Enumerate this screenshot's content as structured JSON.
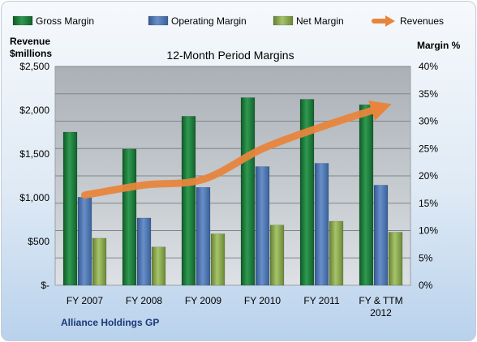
{
  "chart_data": {
    "type": "bar",
    "title": "12-Month Period Margins",
    "ylabel_left": [
      "Revenue",
      "$millions"
    ],
    "ylabel_right": "Margin %",
    "footer": "Alliance Holdings GP",
    "categories": [
      "FY 2007",
      "FY 2008",
      "FY 2009",
      "FY 2010",
      "FY 2011",
      "FY & TTM 2012"
    ],
    "category_labels": [
      [
        "FY 2007"
      ],
      [
        "FY 2008"
      ],
      [
        "FY 2009"
      ],
      [
        "FY 2010"
      ],
      [
        "FY 2011"
      ],
      [
        "FY & TTM",
        "2012"
      ]
    ],
    "left_axis": {
      "min": 0,
      "max": 2500,
      "ticks": [
        "$-",
        "$500",
        "$1,000",
        "$1,500",
        "$2,000",
        "$2,500"
      ]
    },
    "right_axis": {
      "min": 0,
      "max": 40,
      "ticks": [
        "0%",
        "5%",
        "10%",
        "15%",
        "20%",
        "25%",
        "30%",
        "35%",
        "40%"
      ]
    },
    "grid": true,
    "legend_position": "top",
    "series": [
      {
        "name": "Gross Margin",
        "type": "bar",
        "axis": "right",
        "color": "#1e7a3c",
        "values": [
          28.0,
          24.9,
          30.9,
          34.3,
          34.0,
          33.0
        ]
      },
      {
        "name": "Operating Margin",
        "type": "bar",
        "axis": "right",
        "color": "#4d74b0",
        "values": [
          16.1,
          12.3,
          17.9,
          21.7,
          22.3,
          18.3
        ]
      },
      {
        "name": "Net Margin",
        "type": "bar",
        "axis": "right",
        "color": "#86a84a",
        "values": [
          8.6,
          7.0,
          9.4,
          11.0,
          11.7,
          9.7
        ]
      },
      {
        "name": "Revenues",
        "type": "line",
        "axis": "left",
        "color": "#e8853d",
        "values": [
          1030,
          1145,
          1210,
          1560,
          1810,
          2030
        ]
      }
    ]
  }
}
